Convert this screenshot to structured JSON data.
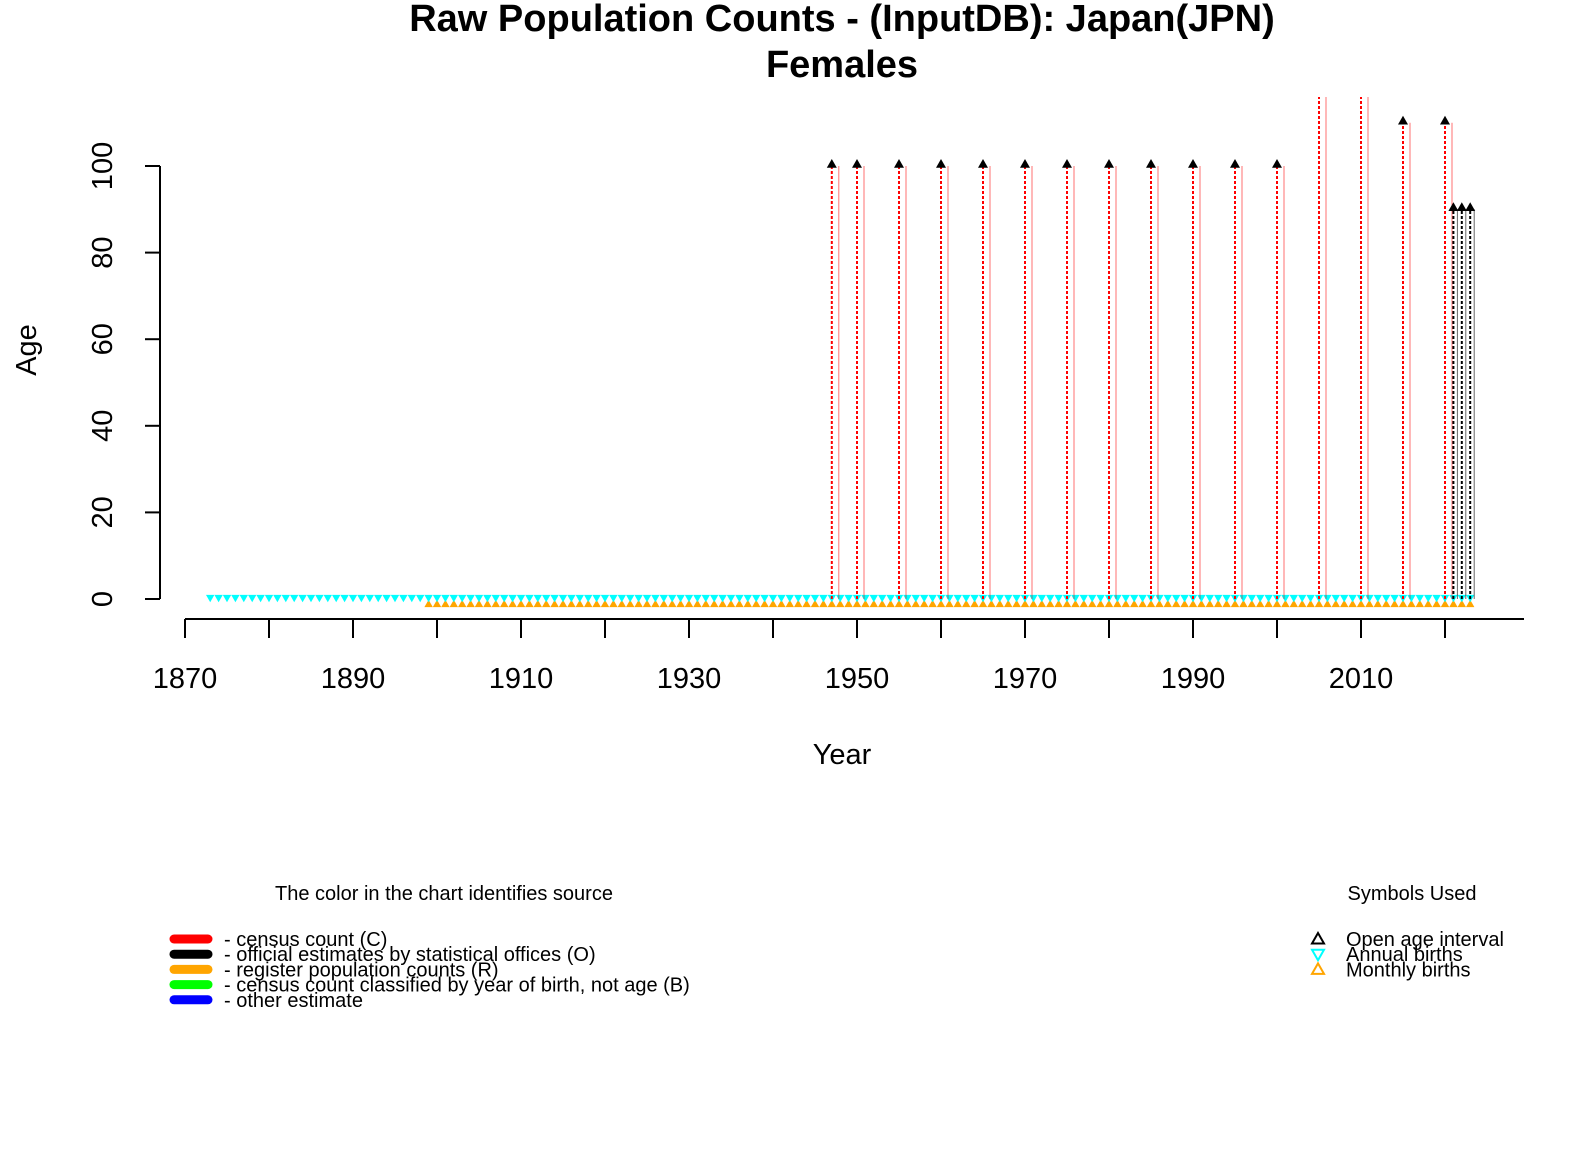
{
  "chart_data": {
    "type": "scatter",
    "title": "Raw Population Counts - (InputDB): Japan(JPN)",
    "subtitle": "Females",
    "xlabel": "Year",
    "ylabel": "Age",
    "xlim": [
      1870,
      2028
    ],
    "ylim": [
      0,
      100
    ],
    "x_ticks": [
      1870,
      1880,
      1890,
      1900,
      1910,
      1920,
      1930,
      1940,
      1950,
      1960,
      1970,
      1980,
      1990,
      2000,
      2010,
      2020
    ],
    "x_tick_labels": [
      "1870",
      "1890",
      "1910",
      "1930",
      "1950",
      "1970",
      "1990",
      "2010"
    ],
    "y_ticks": [
      0,
      20,
      40,
      60,
      80,
      100
    ],
    "y_tick_labels": [
      "0",
      "20",
      "40",
      "60",
      "80",
      "100"
    ],
    "colors": {
      "census": "#ff0000",
      "official": "#000000",
      "register": "#ffa500",
      "birth_cohort": "#00ff00",
      "other": "#0000ff",
      "annual_births": "#00ffff",
      "monthly_births": "#ffa500"
    },
    "census_open_age_intervals": [
      {
        "year": 1947,
        "open_age": 100
      },
      {
        "year": 1950,
        "open_age": 100
      },
      {
        "year": 1955,
        "open_age": 100
      },
      {
        "year": 1960,
        "open_age": 100
      },
      {
        "year": 1965,
        "open_age": 100
      },
      {
        "year": 1970,
        "open_age": 100
      },
      {
        "year": 1975,
        "open_age": 100
      },
      {
        "year": 1980,
        "open_age": 100
      },
      {
        "year": 1985,
        "open_age": 100
      },
      {
        "year": 1990,
        "open_age": 100
      },
      {
        "year": 1995,
        "open_age": 100
      },
      {
        "year": 2000,
        "open_age": 100
      },
      {
        "year": 2005,
        "open_age": 120
      },
      {
        "year": 2010,
        "open_age": 120
      },
      {
        "year": 2015,
        "open_age": 110
      },
      {
        "year": 2020,
        "open_age": 110
      }
    ],
    "official_estimates_open_age_intervals": [
      {
        "year": 2021,
        "open_age": 90
      },
      {
        "year": 2022,
        "open_age": 90
      },
      {
        "year": 2023,
        "open_age": 90
      }
    ],
    "annual_births_years": [
      1873,
      2023
    ],
    "monthly_births_years": [
      1899,
      2023
    ],
    "legend_source": {
      "title": "The color in the chart identifies source",
      "items": [
        {
          "label": "- census count (C)",
          "color": "#ff0000"
        },
        {
          "label": "- official estimates by statistical offices (O)",
          "color": "#000000"
        },
        {
          "label": "- register population counts (R)",
          "color": "#ffa500"
        },
        {
          "label": "- census count classified by year of birth, not age (B)",
          "color": "#00ff00"
        },
        {
          "label": "- other estimate",
          "color": "#0000ff"
        }
      ]
    },
    "legend_symbols": {
      "title": "Symbols Used",
      "items": [
        {
          "label": "Open age interval",
          "symbol": "triangle-up",
          "color": "#000000"
        },
        {
          "label": "Annual births",
          "symbol": "triangle-down",
          "color": "#00ffff"
        },
        {
          "label": "Monthly births",
          "symbol": "triangle-up",
          "color": "#ffa500"
        }
      ]
    }
  }
}
